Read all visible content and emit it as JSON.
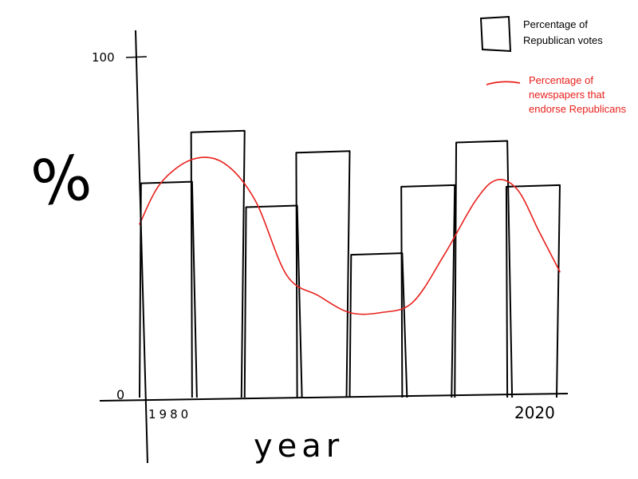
{
  "chart_data": {
    "type": "bar",
    "categories": [
      "1980",
      "",
      "",
      "",
      "",
      "",
      "",
      "2020"
    ],
    "x_range": [
      1980,
      2020
    ],
    "ylim": [
      0,
      100
    ],
    "xlabel": "year",
    "ylabel": "%",
    "ytick_labels": [
      "0",
      "100"
    ],
    "xtick_labels": [
      "1980",
      "2020"
    ],
    "series": [
      {
        "name": "Percentage of Republican votes",
        "type": "bar",
        "color": "#000000",
        "values": [
          63,
          78,
          56,
          72,
          42,
          62,
          75,
          62
        ]
      },
      {
        "name": "Percentage of newspapers that endorse Republicans",
        "type": "line",
        "color": "#e8201c",
        "points": [
          [
            1980,
            51
          ],
          [
            1982,
            63
          ],
          [
            1985,
            70
          ],
          [
            1988,
            69
          ],
          [
            1991,
            58
          ],
          [
            1994,
            36
          ],
          [
            1997,
            30
          ],
          [
            2000,
            25
          ],
          [
            2003,
            25
          ],
          [
            2006,
            28
          ],
          [
            2009,
            42
          ],
          [
            2012,
            58
          ],
          [
            2014,
            64
          ],
          [
            2016,
            61
          ],
          [
            2018,
            49
          ],
          [
            2020,
            37
          ]
        ]
      }
    ],
    "legend": {
      "placement": "top-right",
      "entries": [
        {
          "label": "Percentage of\nRepublican votes",
          "symbol": "box",
          "color": "#000000"
        },
        {
          "label": "Percentage of\nnewspapers that\nendorse Republicans",
          "symbol": "line",
          "color": "#e8201c"
        }
      ]
    },
    "grid": false
  }
}
